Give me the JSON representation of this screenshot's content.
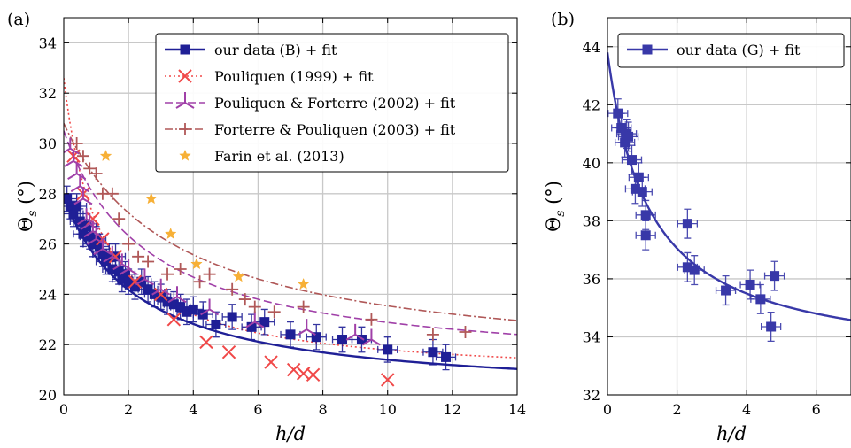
{
  "chart_data": [
    {
      "panel_label": "(a)",
      "type": "scatter",
      "xlabel": "h/d",
      "ylabel": "Θs (°)",
      "xlim": [
        0,
        14
      ],
      "ylim": [
        20,
        35
      ],
      "xticks": [
        "0",
        "2",
        "4",
        "6",
        "8",
        "10",
        "12",
        "14"
      ],
      "yticks": [
        "20",
        "22",
        "24",
        "26",
        "28",
        "30",
        "32",
        "34"
      ],
      "grid": true,
      "legend_position": "top-right",
      "series": [
        {
          "name": "our data (B) + fit",
          "color": "#1f1f96",
          "marker": "square",
          "points": [
            [
              0.1,
              27.8
            ],
            [
              0.2,
              27.5
            ],
            [
              0.3,
              27.2
            ],
            [
              0.4,
              27.5
            ],
            [
              0.5,
              26.9
            ],
            [
              0.6,
              26.4
            ],
            [
              0.7,
              26.7
            ],
            [
              0.8,
              26.3
            ],
            [
              0.9,
              26.0
            ],
            [
              1.0,
              26.2
            ],
            [
              1.1,
              25.9
            ],
            [
              1.2,
              25.6
            ],
            [
              1.3,
              25.3
            ],
            [
              1.4,
              25.5
            ],
            [
              1.5,
              25.0
            ],
            [
              1.6,
              25.5
            ],
            [
              1.7,
              24.9
            ],
            [
              1.8,
              24.6
            ],
            [
              1.9,
              24.8
            ],
            [
              2.0,
              24.5
            ],
            [
              2.2,
              24.3
            ],
            [
              2.4,
              24.5
            ],
            [
              2.6,
              24.2
            ],
            [
              2.8,
              24.0
            ],
            [
              3.0,
              23.9
            ],
            [
              3.2,
              23.7
            ],
            [
              3.4,
              23.6
            ],
            [
              3.6,
              23.5
            ],
            [
              3.8,
              23.3
            ],
            [
              4.0,
              23.4
            ],
            [
              4.3,
              23.2
            ],
            [
              4.7,
              22.8
            ],
            [
              5.2,
              23.1
            ],
            [
              5.8,
              22.7
            ],
            [
              6.2,
              22.9
            ],
            [
              7.0,
              22.4
            ],
            [
              7.8,
              22.3
            ],
            [
              8.6,
              22.2
            ],
            [
              9.2,
              22.2
            ],
            [
              10.0,
              21.8
            ],
            [
              11.4,
              21.7
            ],
            [
              11.8,
              21.5
            ]
          ],
          "xerr": 0.3,
          "yerr": 0.5,
          "fit": {
            "a": 19.9,
            "b": 8.0,
            "c": 2.3
          }
        },
        {
          "name": "Pouliquen (1999) + fit",
          "color": "#f04848",
          "marker": "x",
          "points": [
            [
              0.3,
              29.5
            ],
            [
              0.6,
              28.0
            ],
            [
              0.9,
              27.0
            ],
            [
              1.2,
              26.2
            ],
            [
              1.6,
              25.5
            ],
            [
              2.2,
              24.5
            ],
            [
              3.0,
              24.0
            ],
            [
              3.4,
              23.0
            ],
            [
              4.4,
              22.1
            ],
            [
              5.1,
              21.7
            ],
            [
              6.4,
              21.3
            ],
            [
              7.1,
              21.0
            ],
            [
              7.4,
              20.85
            ],
            [
              7.7,
              20.8
            ],
            [
              10.0,
              20.6
            ]
          ],
          "fit": {
            "a": 20.6,
            "b": 12.0,
            "c": 1.1
          }
        },
        {
          "name": "Pouliquen & Forterre (2002) + fit",
          "color": "#a040a8",
          "marker": "tri",
          "points": [
            [
              0.2,
              29.8
            ],
            [
              0.3,
              29.3
            ],
            [
              0.4,
              28.8
            ],
            [
              0.5,
              28.3
            ],
            [
              0.6,
              27.8
            ],
            [
              0.7,
              27.0
            ],
            [
              0.8,
              26.8
            ],
            [
              0.9,
              26.5
            ],
            [
              1.0,
              26.2
            ],
            [
              1.2,
              25.8
            ],
            [
              1.5,
              25.5
            ],
            [
              1.8,
              25.2
            ],
            [
              2.0,
              25.0
            ],
            [
              2.5,
              24.6
            ],
            [
              3.0,
              24.2
            ],
            [
              3.5,
              23.9
            ],
            [
              4.5,
              23.4
            ],
            [
              5.9,
              22.9
            ],
            [
              7.5,
              22.6
            ],
            [
              9.0,
              22.4
            ],
            [
              9.5,
              22.2
            ]
          ],
          "fit": {
            "a": 20.9,
            "b": 9.6,
            "c": 2.6
          }
        },
        {
          "name": "Forterre & Pouliquen (2003) + fit",
          "color": "#b05858",
          "marker": "plus",
          "points": [
            [
              0.4,
              30.0
            ],
            [
              0.6,
              29.5
            ],
            [
              0.8,
              29.0
            ],
            [
              1.0,
              28.8
            ],
            [
              1.2,
              28.0
            ],
            [
              1.5,
              28.0
            ],
            [
              1.7,
              27.0
            ],
            [
              2.0,
              26.0
            ],
            [
              2.3,
              25.5
            ],
            [
              2.6,
              25.3
            ],
            [
              3.2,
              24.8
            ],
            [
              3.6,
              25.0
            ],
            [
              4.2,
              24.5
            ],
            [
              4.5,
              24.8
            ],
            [
              5.2,
              24.2
            ],
            [
              5.6,
              23.8
            ],
            [
              5.9,
              23.5
            ],
            [
              6.5,
              23.3
            ],
            [
              7.4,
              23.5
            ],
            [
              9.5,
              23.0
            ],
            [
              11.4,
              22.4
            ],
            [
              12.4,
              22.5
            ]
          ],
          "fit": {
            "a": 21.0,
            "b": 9.8,
            "c": 3.5
          }
        },
        {
          "name": "Farin et al. (2013)",
          "color": "#f7b036",
          "marker": "star",
          "points": [
            [
              1.3,
              29.5
            ],
            [
              2.7,
              27.8
            ],
            [
              3.3,
              26.4
            ],
            [
              4.1,
              25.2
            ],
            [
              5.4,
              24.7
            ],
            [
              7.4,
              24.4
            ]
          ]
        }
      ]
    },
    {
      "panel_label": "(b)",
      "type": "scatter",
      "xlabel": "h/d",
      "ylabel": "Θs (°)",
      "xlim": [
        0,
        7
      ],
      "ylim": [
        32,
        45
      ],
      "xticks": [
        "0",
        "2",
        "4",
        "6"
      ],
      "yticks": [
        "32",
        "34",
        "36",
        "38",
        "40",
        "42",
        "44"
      ],
      "grid": true,
      "legend_position": "top-right",
      "series": [
        {
          "name": "our data (G) + fit",
          "color": "#3838a8",
          "marker": "square",
          "points": [
            [
              0.3,
              41.7
            ],
            [
              0.4,
              41.2
            ],
            [
              0.5,
              40.7
            ],
            [
              0.55,
              41.0
            ],
            [
              0.6,
              40.9
            ],
            [
              0.7,
              40.1
            ],
            [
              0.8,
              39.1
            ],
            [
              0.9,
              39.5
            ],
            [
              1.0,
              39.0
            ],
            [
              1.1,
              38.2
            ],
            [
              1.1,
              37.5
            ],
            [
              2.3,
              37.9
            ],
            [
              2.3,
              36.4
            ],
            [
              2.5,
              36.3
            ],
            [
              3.4,
              35.6
            ],
            [
              4.1,
              35.8
            ],
            [
              4.4,
              35.3
            ],
            [
              4.7,
              34.35
            ],
            [
              4.8,
              36.1
            ]
          ],
          "xerr": 0.28,
          "yerr": 0.5,
          "fit": {
            "a": 33.0,
            "b": 10.8,
            "c": 1.2
          }
        }
      ]
    }
  ]
}
